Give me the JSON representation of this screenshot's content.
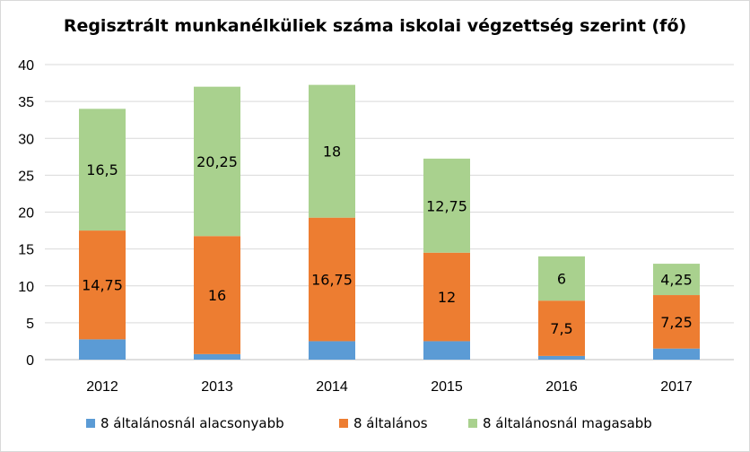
{
  "chart_data": {
    "type": "bar",
    "stacked": true,
    "title": "Regisztrált munkanélküliek száma iskolai végzettség szerint (fő)",
    "categories": [
      "2012",
      "2013",
      "2014",
      "2015",
      "2016",
      "2017"
    ],
    "ylim": [
      0,
      40
    ],
    "yticks": [
      "0",
      "5",
      "10",
      "15",
      "20",
      "25",
      "30",
      "35",
      "40"
    ],
    "grid": true,
    "legend_position": "bottom",
    "series": [
      {
        "name": "8 általánosnál alacsonyabb",
        "color": "#5b9bd5",
        "values": [
          2.75,
          0.75,
          2.5,
          2.5,
          0.5,
          1.5
        ],
        "labels": [
          "",
          "",
          "",
          "",
          "",
          ""
        ]
      },
      {
        "name": "8 általános",
        "color": "#ed7d31",
        "values": [
          14.75,
          16,
          16.75,
          12,
          7.5,
          7.25
        ],
        "labels": [
          "14,75",
          "16",
          "16,75",
          "12",
          "7,5",
          "7,25"
        ]
      },
      {
        "name": "8 általánosnál magasabb",
        "color": "#a9d18e",
        "values": [
          16.5,
          20.25,
          18,
          12.75,
          6,
          4.25
        ],
        "labels": [
          "16,5",
          "20,25",
          "18",
          "12,75",
          "6",
          "4,25"
        ]
      }
    ]
  }
}
